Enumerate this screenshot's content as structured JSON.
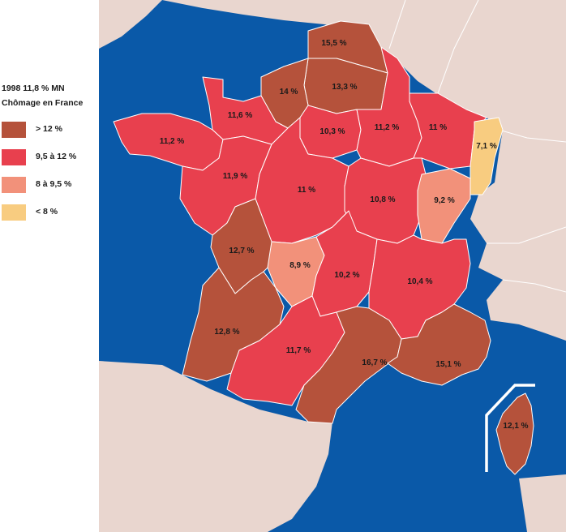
{
  "legend": {
    "title_line1": "1998 11,8 % MN",
    "title_line2": "Chômage en France",
    "items": [
      {
        "label": "> 12 %",
        "color": "#B5523B"
      },
      {
        "label": "9,5 à 12 %",
        "color": "#E8404E"
      },
      {
        "label": "8 à 9,5 %",
        "color": "#F2917A"
      },
      {
        "label": "< 8 %",
        "color": "#F8CC80"
      }
    ]
  },
  "colors": {
    "sea": "#0A59A8",
    "land": "#E9D6CF"
  },
  "regions": [
    {
      "name": "nord-pas-de-calais",
      "value": "15,5 %",
      "class": "gt12"
    },
    {
      "name": "picardie",
      "value": "13,3 %",
      "class": "gt12"
    },
    {
      "name": "haute-normandie",
      "value": "14 %",
      "class": "gt12"
    },
    {
      "name": "basse-normandie",
      "value": "11,6 %",
      "class": "9to12"
    },
    {
      "name": "bretagne",
      "value": "11,2 %",
      "class": "9to12"
    },
    {
      "name": "ile-de-france",
      "value": "10,3 %",
      "class": "9to12"
    },
    {
      "name": "champagne-ardenne",
      "value": "11,2 %",
      "class": "9to12"
    },
    {
      "name": "lorraine",
      "value": "11 %",
      "class": "9to12"
    },
    {
      "name": "alsace",
      "value": "7,1 %",
      "class": "lt8"
    },
    {
      "name": "pays-de-la-loire",
      "value": "11,9 %",
      "class": "9to12"
    },
    {
      "name": "centre",
      "value": "11 %",
      "class": "9to12"
    },
    {
      "name": "bourgogne",
      "value": "10,8 %",
      "class": "9to12"
    },
    {
      "name": "franche-comte",
      "value": "9,2 %",
      "class": "8to9"
    },
    {
      "name": "poitou-charentes",
      "value": "12,7 %",
      "class": "gt12"
    },
    {
      "name": "limousin",
      "value": "8,9 %",
      "class": "8to9"
    },
    {
      "name": "auvergne",
      "value": "10,2 %",
      "class": "9to12"
    },
    {
      "name": "rhone-alpes",
      "value": "10,4 %",
      "class": "9to12"
    },
    {
      "name": "aquitaine",
      "value": "12,8 %",
      "class": "gt12"
    },
    {
      "name": "midi-pyrenees",
      "value": "11,7 %",
      "class": "9to12"
    },
    {
      "name": "languedoc-roussillon",
      "value": "16,7 %",
      "class": "gt12"
    },
    {
      "name": "provence-alpes-cote-d-azur",
      "value": "15,1 %",
      "class": "gt12"
    },
    {
      "name": "corse",
      "value": "12,1 %",
      "class": "gt12"
    }
  ]
}
